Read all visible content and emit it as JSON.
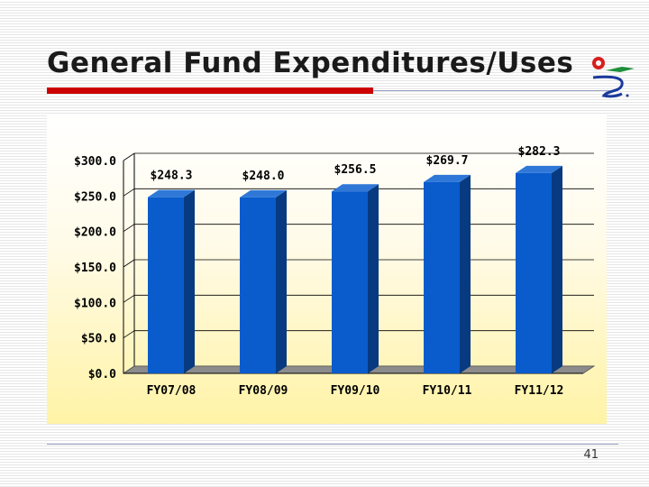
{
  "slide": {
    "title": "General Fund Expenditures/Uses",
    "page_number": "41"
  },
  "colors": {
    "title_bar": "#cc0000",
    "bar_front": "#0a5ccc",
    "bar_side": "#073a80",
    "bar_top": "#2f78d8"
  },
  "chart_data": {
    "type": "bar",
    "categories": [
      "FY07/08",
      "FY08/09",
      "FY09/10",
      "FY10/11",
      "FY11/12"
    ],
    "values": [
      248.3,
      248.0,
      256.5,
      269.7,
      282.3
    ],
    "data_labels": [
      "$248.3",
      "$248.0",
      "$256.5",
      "$269.7",
      "$282.3"
    ],
    "yticks": [
      "$0.0",
      "$50.0",
      "$100.0",
      "$150.0",
      "$200.0",
      "$250.0",
      "$300.0"
    ],
    "ylim": [
      0,
      300
    ],
    "grid": true,
    "legend": "none"
  }
}
